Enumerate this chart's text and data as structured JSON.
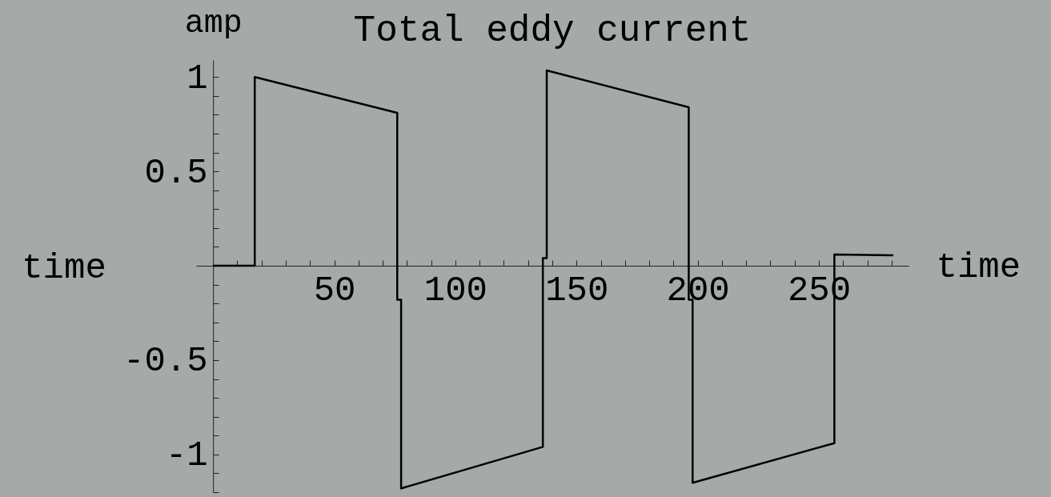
{
  "chart_data": {
    "type": "line",
    "title": "Total eddy current",
    "xlabel": "time",
    "ylabel": "amp",
    "annotations": [
      "time"
    ],
    "x": [
      0,
      17.2,
      17.2,
      76,
      76,
      77.6,
      77.6,
      136.1,
      136.1,
      137.7,
      137.7,
      196.3,
      196.3,
      197.9,
      197.9,
      256.4,
      256.4,
      280.7
    ],
    "series": [
      {
        "color": "#000000",
        "values": [
          0,
          0,
          1.0,
          0.81,
          -0.18,
          -0.18,
          -1.18,
          -0.96,
          0.04,
          0.04,
          1.035,
          0.84,
          -0.18,
          -0.18,
          -1.15,
          -0.94,
          0.06,
          0.055
        ]
      }
    ],
    "xlim": [
      -7,
      287
    ],
    "ylim": [
      -1.2,
      1.09
    ],
    "xticks": [
      {
        "value": 10,
        "label": null
      },
      {
        "value": 20,
        "label": null
      },
      {
        "value": 30,
        "label": null
      },
      {
        "value": 40,
        "label": null
      },
      50,
      {
        "value": 60,
        "label": null
      },
      {
        "value": 70,
        "label": null
      },
      {
        "value": 80,
        "label": null
      },
      {
        "value": 90,
        "label": null
      },
      100,
      {
        "value": 110,
        "label": null
      },
      {
        "value": 120,
        "label": null
      },
      {
        "value": 130,
        "label": null
      },
      {
        "value": 140,
        "label": null
      },
      150,
      {
        "value": 160,
        "label": null
      },
      {
        "value": 170,
        "label": null
      },
      {
        "value": 180,
        "label": null
      },
      {
        "value": 190,
        "label": null
      },
      200,
      {
        "value": 210,
        "label": null
      },
      {
        "value": 220,
        "label": null
      },
      {
        "value": 230,
        "label": null
      },
      {
        "value": 240,
        "label": null
      },
      250,
      {
        "value": 260,
        "label": null
      },
      {
        "value": 270,
        "label": null
      },
      {
        "value": 280,
        "label": null
      }
    ],
    "yticks": [
      {
        "value": -1.2,
        "label": null
      },
      {
        "value": -1.1,
        "label": null
      },
      -1,
      {
        "value": -0.9,
        "label": null
      },
      {
        "value": -0.8,
        "label": null
      },
      {
        "value": -0.7,
        "label": null
      },
      {
        "value": -0.6,
        "label": null
      },
      -0.5,
      {
        "value": -0.4,
        "label": null
      },
      {
        "value": -0.3,
        "label": null
      },
      {
        "value": -0.2,
        "label": null
      },
      {
        "value": -0.1,
        "label": null
      },
      {
        "value": 0.1,
        "label": null
      },
      {
        "value": 0.2,
        "label": null
      },
      {
        "value": 0.3,
        "label": null
      },
      {
        "value": 0.4,
        "label": null
      },
      0.5,
      {
        "value": 0.6,
        "label": null
      },
      {
        "value": 0.7,
        "label": null
      },
      {
        "value": 0.8,
        "label": null
      },
      {
        "value": 0.9,
        "label": null
      },
      1
    ]
  }
}
